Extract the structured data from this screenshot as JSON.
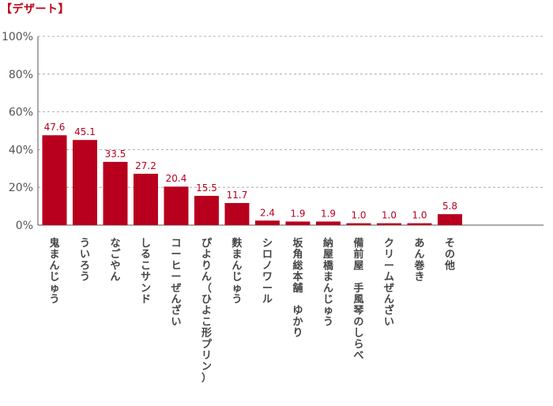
{
  "chart_data": {
    "type": "bar",
    "title": "【デザート】",
    "categories": [
      "鬼まんじゅう",
      "ういろう",
      "なごやん",
      "しるこサンド",
      "コーヒーぜんざい",
      "ぴよりん（ひよこ形プリン）",
      "麩まんじゅう",
      "シロノワール",
      "坂角総本舗 ゆかり",
      "納屋橋まんじゅう",
      "備前屋 手風琴のしらべ",
      "クリームぜんざい",
      "あん巻き",
      "その他"
    ],
    "values": [
      47.6,
      45.1,
      33.5,
      27.2,
      20.4,
      15.5,
      11.7,
      2.4,
      1.9,
      1.9,
      1.0,
      1.0,
      1.0,
      5.8
    ],
    "data_labels": [
      "47.6",
      "45.1",
      "33.5",
      "27.2",
      "20.4",
      "15.5",
      "11.7",
      "2.4",
      "1.9",
      "1.9",
      "1.0",
      "1.0",
      "1.0",
      "5.8"
    ],
    "yticks": [
      "0%",
      "20%",
      "40%",
      "60%",
      "80%",
      "100%"
    ],
    "ylim": [
      0,
      100
    ],
    "xlabel": "",
    "ylabel": "",
    "grid": true,
    "bar_color": "#b8001e",
    "label_color": "#b8001e",
    "title_color": "#c0001a"
  }
}
